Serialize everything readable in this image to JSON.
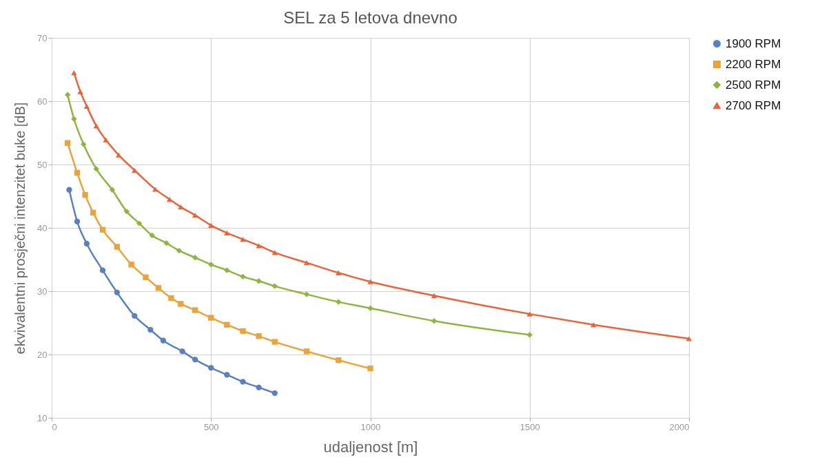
{
  "chart_data": {
    "type": "line",
    "title": "SEL za 5 letova dnevno",
    "xlabel": "udaljenost [m]",
    "ylabel": "ekvivalentni prosječni intenzitet buke [dB]",
    "xlim": [
      0,
      2000
    ],
    "xticks": [
      0,
      500,
      1000,
      1500,
      2000
    ],
    "ylim": [
      10,
      70
    ],
    "yticks": [
      10,
      20,
      30,
      40,
      50,
      60,
      70
    ],
    "grid": true,
    "legend": "right",
    "series": [
      {
        "name": "1900 RPM",
        "color": "#5b80c0",
        "marker": "circle",
        "x": [
          55,
          80,
          110,
          160,
          205,
          260,
          310,
          350,
          410,
          450,
          500,
          550,
          600,
          650,
          700
        ],
        "values": [
          46.0,
          41.0,
          37.5,
          33.3,
          29.8,
          26.1,
          23.9,
          22.2,
          20.5,
          19.2,
          17.9,
          16.8,
          15.7,
          14.8,
          13.9
        ]
      },
      {
        "name": "2200 RPM",
        "color": "#e9a43c",
        "marker": "square",
        "x": [
          50,
          80,
          105,
          130,
          160,
          205,
          250,
          295,
          335,
          375,
          405,
          450,
          500,
          550,
          600,
          650,
          700,
          800,
          900,
          1000
        ],
        "values": [
          53.4,
          48.7,
          45.2,
          42.4,
          39.7,
          37.0,
          34.2,
          32.2,
          30.5,
          28.9,
          28.0,
          27.0,
          25.8,
          24.7,
          23.7,
          22.9,
          22.0,
          20.5,
          19.1,
          17.8
        ]
      },
      {
        "name": "2500 RPM",
        "color": "#8db540",
        "marker": "diamond",
        "x": [
          50,
          70,
          100,
          140,
          190,
          235,
          275,
          315,
          360,
          400,
          450,
          500,
          550,
          600,
          650,
          700,
          800,
          900,
          1000,
          1200,
          1500
        ],
        "values": [
          61.0,
          57.2,
          53.2,
          49.3,
          46.0,
          42.6,
          40.7,
          38.8,
          37.6,
          36.4,
          35.3,
          34.2,
          33.3,
          32.3,
          31.6,
          30.8,
          29.5,
          28.3,
          27.3,
          25.3,
          23.1
        ]
      },
      {
        "name": "2700 RPM",
        "color": "#e9643a",
        "marker": "triangle",
        "x": [
          70,
          90,
          110,
          140,
          170,
          210,
          260,
          325,
          370,
          405,
          450,
          500,
          550,
          600,
          650,
          700,
          800,
          900,
          1000,
          1200,
          1500,
          1700,
          2000
        ],
        "values": [
          64.5,
          61.5,
          59.2,
          56.1,
          53.9,
          51.5,
          49.1,
          46.1,
          44.5,
          43.3,
          42.0,
          40.4,
          39.2,
          38.2,
          37.2,
          36.1,
          34.5,
          32.9,
          31.5,
          29.3,
          26.4,
          24.7,
          22.5
        ]
      }
    ]
  }
}
